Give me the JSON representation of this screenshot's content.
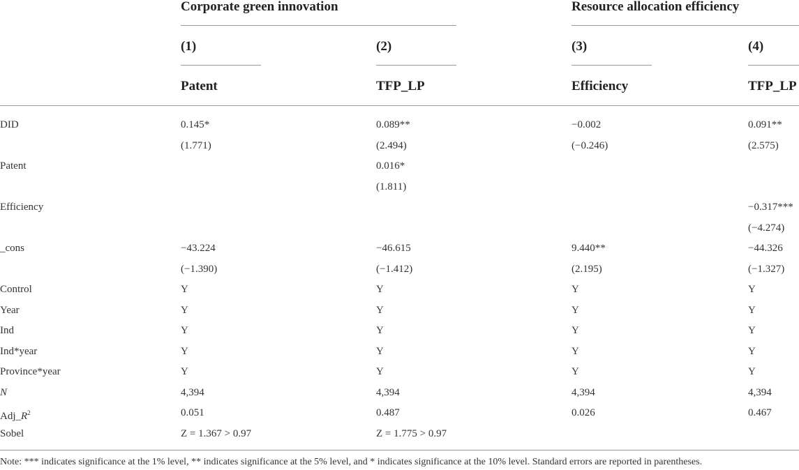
{
  "table": {
    "groups": [
      "Corporate green innovation",
      "Resource allocation efficiency"
    ],
    "models": [
      "(1)",
      "(2)",
      "(3)",
      "(4)"
    ],
    "dependents": [
      "Patent",
      "TFP_LP",
      "Efficiency",
      "TFP_LP"
    ],
    "rows": [
      [
        "DID",
        "0.145*",
        "0.089**",
        "−0.002",
        "0.091**"
      ],
      [
        null,
        "(1.771)",
        "(2.494)",
        "(−0.246)",
        "(2.575)"
      ],
      [
        "Patent",
        null,
        "0.016*",
        null,
        null
      ],
      [
        null,
        null,
        "(1.811)",
        null,
        null
      ],
      [
        "Efficiency",
        null,
        null,
        null,
        "−0.317***"
      ],
      [
        null,
        null,
        null,
        null,
        "(−4.274)"
      ],
      [
        "_cons",
        "−43.224",
        "−46.615",
        "9.440**",
        "−44.326"
      ],
      [
        null,
        "(−1.390)",
        "(−1.412)",
        "(2.195)",
        "(−1.327)"
      ],
      [
        "Control",
        "Y",
        "Y",
        "Y",
        "Y"
      ],
      [
        "Year",
        "Y",
        "Y",
        "Y",
        "Y"
      ],
      [
        "Ind",
        "Y",
        "Y",
        "Y",
        "Y"
      ],
      [
        "Ind*year",
        "Y",
        "Y",
        "Y",
        "Y"
      ],
      [
        "Province*year",
        "Y",
        "Y",
        "Y",
        "Y"
      ],
      [
        "N",
        "4,394",
        "4,394",
        "4,394",
        "4,394"
      ],
      [
        [
          "Adj_",
          "R",
          "2"
        ],
        "0.051",
        "0.487",
        "0.026",
        "0.467"
      ],
      [
        "Sobel",
        "Z = 1.367 > 0.97",
        "Z = 1.775 > 0.97",
        null,
        null
      ]
    ],
    "note": "Note: *** indicates significance at the 1% level, ** indicates significance at the 5% level, and * indicates significance at the 10% level. Standard errors are reported in parentheses."
  }
}
